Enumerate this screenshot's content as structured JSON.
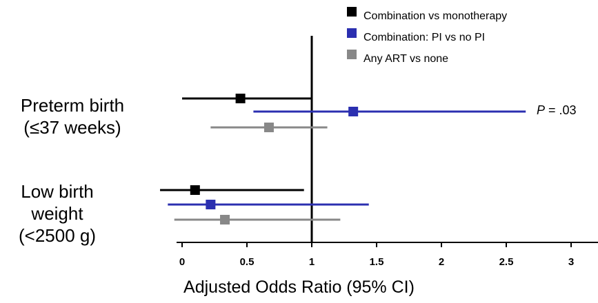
{
  "chart_data": {
    "type": "forest",
    "xlabel": "Adjusted Odds Ratio (95% CI)",
    "xlim": [
      0,
      3
    ],
    "xticks": [
      "0",
      "0.5",
      "1",
      "1.5",
      "2",
      "2.5",
      "3"
    ],
    "reference_line": 1,
    "categories": [
      {
        "label_lines": [
          "Preterm birth",
          "(≤37 weeks)"
        ]
      },
      {
        "label_lines": [
          "Low birth",
          "weight",
          "(<2500 g)"
        ]
      }
    ],
    "series": [
      {
        "name": "Combination vs monotherapy",
        "color": "#000000",
        "points": [
          {
            "or": 0.45,
            "lo": 0.0,
            "hi": 1.0
          },
          {
            "or": 0.1,
            "lo": -0.17,
            "hi": 0.94
          }
        ]
      },
      {
        "name": "Combination: PI vs no PI",
        "color": "#2b2fb0",
        "points": [
          {
            "or": 1.32,
            "lo": 0.55,
            "hi": 2.65
          },
          {
            "or": 0.22,
            "lo": -0.11,
            "hi": 1.44
          }
        ]
      },
      {
        "name": "Any ART vs none",
        "color": "#888888",
        "points": [
          {
            "or": 0.67,
            "lo": 0.22,
            "hi": 1.12
          },
          {
            "or": 0.33,
            "lo": -0.06,
            "hi": 1.22
          }
        ]
      }
    ],
    "annotations": [
      {
        "p_symbol": "P",
        "text": " = .03"
      }
    ],
    "legend_position": "top-right"
  }
}
